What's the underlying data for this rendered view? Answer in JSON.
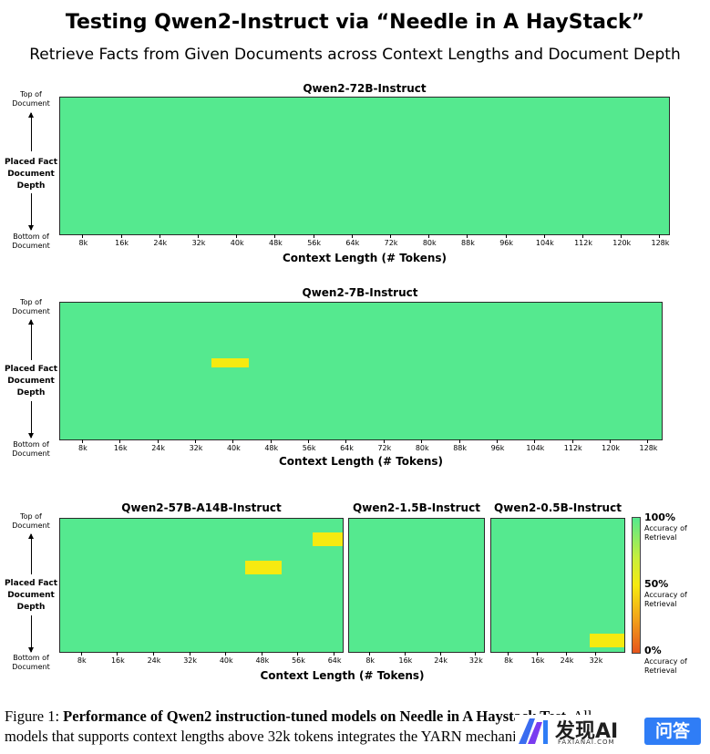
{
  "title": "Testing Qwen2-Instruct via “Needle in A HayStack”",
  "subtitle": "Retrieve Facts from Given Documents across Context Lengths and Document Depth",
  "axis_text": {
    "y_top": "Top of Document",
    "y_mid": "Placed Fact Document Depth",
    "y_bottom": "Bottom of Document",
    "x_label": "Context Length (# Tokens)"
  },
  "colorbar": {
    "top_pct": "100%",
    "mid_pct": "50%",
    "bot_pct": "0%",
    "sub": "Accuracy of Retrieval",
    "colors": {
      "high": "#55e98f",
      "mid": "#f6ea10",
      "low": "#e6551c"
    }
  },
  "chart_data": [
    {
      "type": "heatmap",
      "title": "Qwen2-72B-Instruct",
      "xlabel": "Context Length (# Tokens)",
      "ylabel": "Placed Fact Document Depth",
      "x_ticks": [
        "8k",
        "16k",
        "24k",
        "32k",
        "40k",
        "48k",
        "56k",
        "64k",
        "72k",
        "80k",
        "88k",
        "96k",
        "104k",
        "112k",
        "120k",
        "128k"
      ],
      "x_range_k": [
        3,
        130
      ],
      "value": "100% accuracy at all context lengths and depths",
      "anomalies": []
    },
    {
      "type": "heatmap",
      "title": "Qwen2-7B-Instruct",
      "xlabel": "Context Length (# Tokens)",
      "ylabel": "Placed Fact Document Depth",
      "x_ticks": [
        "8k",
        "16k",
        "24k",
        "32k",
        "40k",
        "48k",
        "56k",
        "64k",
        "72k",
        "80k",
        "88k",
        "96k",
        "104k",
        "112k",
        "120k",
        "128k"
      ],
      "x_range_k": [
        3,
        131
      ],
      "value": "100% accuracy except one cell",
      "anomalies": [
        {
          "context_k": [
            35,
            43
          ],
          "depth_pct": [
            40,
            47
          ],
          "accuracy_pct": 50
        }
      ]
    },
    {
      "type": "heatmap",
      "title": "Qwen2-57B-A14B-Instruct",
      "xlabel": "Context Length (# Tokens)",
      "ylabel": "Placed Fact Document Depth",
      "x_ticks": [
        "8k",
        "16k",
        "24k",
        "32k",
        "40k",
        "48k",
        "56k",
        "64k"
      ],
      "x_range_k": [
        3,
        66
      ],
      "value": "100% accuracy except two cells",
      "anomalies": [
        {
          "context_k": [
            59,
            66
          ],
          "depth_pct": [
            10,
            20
          ],
          "accuracy_pct": 50
        },
        {
          "context_k": [
            44,
            52
          ],
          "depth_pct": [
            31,
            41
          ],
          "accuracy_pct": 50
        }
      ]
    },
    {
      "type": "heatmap",
      "title": "Qwen2-1.5B-Instruct",
      "xlabel": "Context Length (# Tokens)",
      "ylabel": "Placed Fact Document Depth",
      "x_ticks": [
        "8k",
        "16k",
        "24k",
        "32k"
      ],
      "x_range_k": [
        3,
        34
      ],
      "value": "100% accuracy at all context lengths and depths",
      "anomalies": []
    },
    {
      "type": "heatmap",
      "title": "Qwen2-0.5B-Instruct",
      "xlabel": "Context Length (# Tokens)",
      "ylabel": "Placed Fact Document Depth",
      "x_ticks": [
        "8k",
        "16k",
        "24k",
        "32k"
      ],
      "x_range_k": [
        3,
        40
      ],
      "value": "100% accuracy except one cell",
      "anomalies": [
        {
          "context_k": [
            30,
            40
          ],
          "depth_pct": [
            85,
            95
          ],
          "accuracy_pct": 50
        }
      ]
    }
  ],
  "caption": {
    "line1_prefix": "Figure 1: ",
    "line1_bold": "Performance of Qwen2 instruction-tuned models on Needle in A Haystack Test.",
    "line1_tail": " All",
    "line2": "models that supports context lengths above 32k tokens integrates the YARN mechanism."
  },
  "watermark": {
    "brand": "发现AI",
    "site": "FAXIANAI.COM",
    "button": "问答"
  }
}
